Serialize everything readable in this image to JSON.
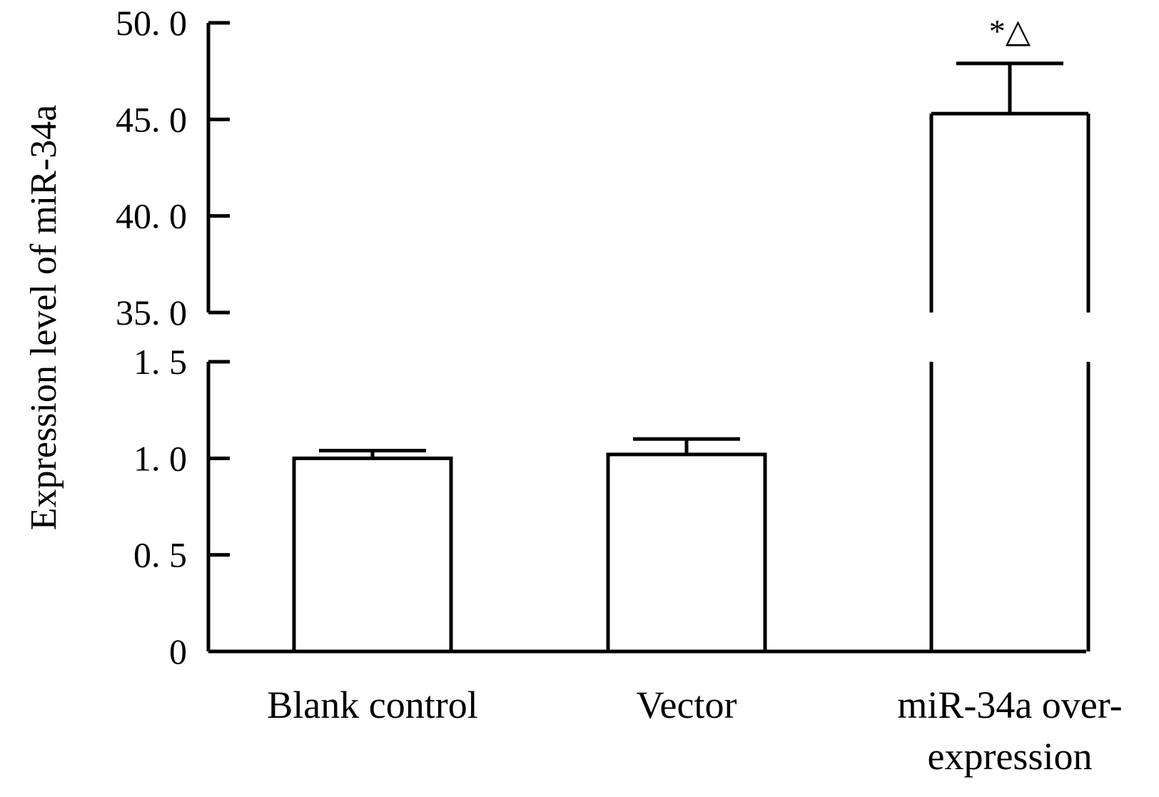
{
  "chart_data": {
    "type": "bar",
    "title": "",
    "xlabel": "",
    "ylabel": "Expression level of miR-34a",
    "categories": [
      [
        "Blank control"
      ],
      [
        "Vector"
      ],
      [
        "miR-34a over-",
        "expression"
      ]
    ],
    "values": [
      1.0,
      1.02,
      45.3
    ],
    "errors": [
      0.04,
      0.08,
      2.6
    ],
    "annotations": [
      "",
      "",
      "*△"
    ],
    "axis_break": {
      "lower_max": 1.5,
      "upper_min": 35.0
    },
    "lower_ylim": [
      0,
      1.5
    ],
    "upper_ylim": [
      35.0,
      50.0
    ],
    "lower_ticks": [
      "0",
      "0. 5",
      "1. 0",
      "1. 5"
    ],
    "upper_ticks": [
      "35. 0",
      "40. 0",
      "45. 0",
      "50. 0"
    ],
    "grid": false,
    "bar_fill": "#ffffff",
    "line_color": "#000000"
  }
}
